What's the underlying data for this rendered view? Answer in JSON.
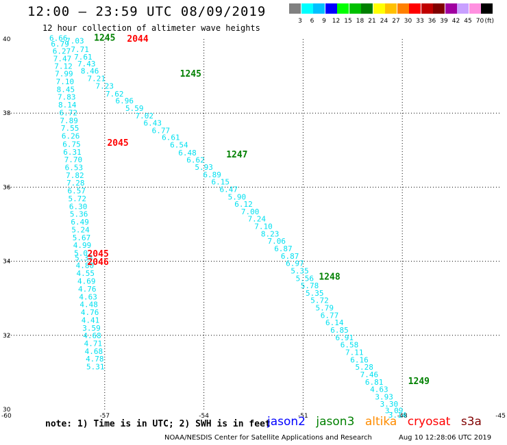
{
  "header": {
    "title": "12:00 – 23:59 UTC 08/09/2019",
    "subtitle": "12 hour collection of altimeter wave heights"
  },
  "colorbar": {
    "unit": "(ft)",
    "swatches": [
      {
        "label": "3",
        "color": "#808080"
      },
      {
        "label": "6",
        "color": "#00ffff"
      },
      {
        "label": "9",
        "color": "#00c0ff"
      },
      {
        "label": "12",
        "color": "#0000ff"
      },
      {
        "label": "15",
        "color": "#00ff00"
      },
      {
        "label": "18",
        "color": "#00c000"
      },
      {
        "label": "21",
        "color": "#008000"
      },
      {
        "label": "24",
        "color": "#ffff00"
      },
      {
        "label": "27",
        "color": "#ffc000"
      },
      {
        "label": "30",
        "color": "#ff8000"
      },
      {
        "label": "33",
        "color": "#ff0000"
      },
      {
        "label": "36",
        "color": "#c00000"
      },
      {
        "label": "39",
        "color": "#800000"
      },
      {
        "label": "42",
        "color": "#a000a0"
      },
      {
        "label": "45",
        "color": "#c8a0ff"
      },
      {
        "label": "70",
        "color": "#ff90e0"
      },
      {
        "label": "",
        "color": "#000000"
      }
    ]
  },
  "chart_data": {
    "type": "scatter",
    "title": "12:00 – 23:59 UTC 08/09/2019",
    "xlim": [
      -60,
      -45
    ],
    "ylim": [
      30,
      40
    ],
    "x_ticks": [
      "-60",
      "-57",
      "-54",
      "-51",
      "-48",
      "-45"
    ],
    "y_ticks": [
      "30",
      "32",
      "34",
      "36",
      "38",
      "40"
    ],
    "grid": true,
    "series": [
      {
        "name": "jason3",
        "color": "#00e0f0",
        "points": [
          {
            "lon": -58.4,
            "lat": 39.95,
            "label": "6.66"
          },
          {
            "lon": -58.35,
            "lat": 39.8,
            "label": "6.79"
          },
          {
            "lon": -58.3,
            "lat": 39.6,
            "label": "6.27"
          },
          {
            "lon": -58.28,
            "lat": 39.4,
            "label": "7.47"
          },
          {
            "lon": -58.25,
            "lat": 39.2,
            "label": "7.12"
          },
          {
            "lon": -58.23,
            "lat": 38.99,
            "label": "7.99"
          },
          {
            "lon": -58.2,
            "lat": 38.78,
            "label": "7.10"
          },
          {
            "lon": -58.18,
            "lat": 38.57,
            "label": "8.45"
          },
          {
            "lon": -58.15,
            "lat": 38.36,
            "label": "7.83"
          },
          {
            "lon": -58.13,
            "lat": 38.15,
            "label": "8.14"
          },
          {
            "lon": -58.1,
            "lat": 37.94,
            "label": "6.72"
          },
          {
            "lon": -58.08,
            "lat": 37.73,
            "label": "7.89"
          },
          {
            "lon": -58.05,
            "lat": 37.52,
            "label": "7.55"
          },
          {
            "lon": -58.03,
            "lat": 37.31,
            "label": "6.26"
          },
          {
            "lon": -58.0,
            "lat": 37.09,
            "label": "6.75"
          },
          {
            "lon": -57.98,
            "lat": 36.88,
            "label": "6.31"
          },
          {
            "lon": -57.95,
            "lat": 36.67,
            "label": "7.70"
          },
          {
            "lon": -57.93,
            "lat": 36.46,
            "label": "6.53"
          },
          {
            "lon": -57.9,
            "lat": 36.25,
            "label": "7.82"
          },
          {
            "lon": -57.88,
            "lat": 36.04,
            "label": "7.28"
          },
          {
            "lon": -57.85,
            "lat": 35.83,
            "label": "6.57"
          },
          {
            "lon": -57.83,
            "lat": 35.62,
            "label": "5.72"
          },
          {
            "lon": -57.8,
            "lat": 35.41,
            "label": "6.30"
          },
          {
            "lon": -57.78,
            "lat": 35.2,
            "label": "5.36"
          },
          {
            "lon": -57.75,
            "lat": 34.99,
            "label": "6.49"
          },
          {
            "lon": -57.73,
            "lat": 34.78,
            "label": "5.24"
          },
          {
            "lon": -57.7,
            "lat": 34.57,
            "label": "5.67"
          },
          {
            "lon": -57.68,
            "lat": 34.36,
            "label": "4.99"
          },
          {
            "lon": -57.65,
            "lat": 34.15,
            "label": "5.02"
          },
          {
            "lon": -57.63,
            "lat": 34.02,
            "label": "5.33"
          },
          {
            "lon": -57.6,
            "lat": 33.82,
            "label": "4.80"
          },
          {
            "lon": -57.58,
            "lat": 33.6,
            "label": "4.55"
          },
          {
            "lon": -57.55,
            "lat": 33.39,
            "label": "4.69"
          },
          {
            "lon": -57.53,
            "lat": 33.18,
            "label": "4.76"
          },
          {
            "lon": -57.5,
            "lat": 32.97,
            "label": "4.63"
          },
          {
            "lon": -57.48,
            "lat": 32.76,
            "label": "4.48"
          },
          {
            "lon": -57.45,
            "lat": 32.55,
            "label": "4.76"
          },
          {
            "lon": -57.43,
            "lat": 32.34,
            "label": "4.41"
          },
          {
            "lon": -57.4,
            "lat": 32.13,
            "label": "3.59"
          },
          {
            "lon": -57.38,
            "lat": 31.92,
            "label": "4.68"
          },
          {
            "lon": -57.35,
            "lat": 31.71,
            "label": "4.71"
          },
          {
            "lon": -57.33,
            "lat": 31.5,
            "label": "4.68"
          },
          {
            "lon": -57.3,
            "lat": 31.29,
            "label": "4.78"
          },
          {
            "lon": -57.28,
            "lat": 31.08,
            "label": "5.31"
          }
        ]
      },
      {
        "name": "jason3-descending",
        "color": "#00e0f0",
        "points": [
          {
            "lon": -57.9,
            "lat": 39.88,
            "label": "7.03"
          },
          {
            "lon": -57.75,
            "lat": 39.65,
            "label": "7.71"
          },
          {
            "lon": -57.65,
            "lat": 39.45,
            "label": "7.61"
          },
          {
            "lon": -57.55,
            "lat": 39.26,
            "label": "7.43"
          },
          {
            "lon": -57.45,
            "lat": 39.07,
            "label": "8.46"
          },
          {
            "lon": -57.25,
            "lat": 38.86,
            "label": "7.21"
          },
          {
            "lon": -57.0,
            "lat": 38.66,
            "label": "7.23"
          },
          {
            "lon": -56.7,
            "lat": 38.45,
            "label": "7.62"
          },
          {
            "lon": -56.4,
            "lat": 38.26,
            "label": "6.96"
          },
          {
            "lon": -56.1,
            "lat": 38.06,
            "label": "5.59"
          },
          {
            "lon": -55.8,
            "lat": 37.86,
            "label": "7.02"
          },
          {
            "lon": -55.55,
            "lat": 37.66,
            "label": "6.43"
          },
          {
            "lon": -55.3,
            "lat": 37.46,
            "label": "6.77"
          },
          {
            "lon": -55.0,
            "lat": 37.27,
            "label": "6.61"
          },
          {
            "lon": -54.75,
            "lat": 37.07,
            "label": "6.54"
          },
          {
            "lon": -54.5,
            "lat": 36.86,
            "label": "6.48"
          },
          {
            "lon": -54.25,
            "lat": 36.66,
            "label": "6.62"
          },
          {
            "lon": -54.0,
            "lat": 36.47,
            "label": "5.93"
          },
          {
            "lon": -53.75,
            "lat": 36.27,
            "label": "6.89"
          },
          {
            "lon": -53.5,
            "lat": 36.07,
            "label": "6.15"
          },
          {
            "lon": -53.25,
            "lat": 35.87,
            "label": "6.47"
          },
          {
            "lon": -53.0,
            "lat": 35.67,
            "label": "5.90"
          },
          {
            "lon": -52.8,
            "lat": 35.47,
            "label": "6.12"
          },
          {
            "lon": -52.6,
            "lat": 35.27,
            "label": "7.00"
          },
          {
            "lon": -52.4,
            "lat": 35.07,
            "label": "7.24"
          },
          {
            "lon": -52.2,
            "lat": 34.87,
            "label": "7.10"
          },
          {
            "lon": -52.0,
            "lat": 34.67,
            "label": "8.23"
          },
          {
            "lon": -51.8,
            "lat": 34.47,
            "label": "7.06"
          },
          {
            "lon": -51.6,
            "lat": 34.27,
            "label": "6.87"
          },
          {
            "lon": -51.4,
            "lat": 34.07,
            "label": "6.87"
          },
          {
            "lon": -51.25,
            "lat": 33.87,
            "label": "6.97"
          },
          {
            "lon": -51.1,
            "lat": 33.67,
            "label": "5.35"
          },
          {
            "lon": -50.95,
            "lat": 33.47,
            "label": "5.56"
          },
          {
            "lon": -50.8,
            "lat": 33.27,
            "label": "5.78"
          },
          {
            "lon": -50.65,
            "lat": 33.07,
            "label": "5.35"
          },
          {
            "lon": -50.5,
            "lat": 32.87,
            "label": "5.72"
          },
          {
            "lon": -50.35,
            "lat": 32.67,
            "label": "5.79"
          },
          {
            "lon": -50.2,
            "lat": 32.47,
            "label": "6.77"
          },
          {
            "lon": -50.05,
            "lat": 32.27,
            "label": "6.14"
          },
          {
            "lon": -49.9,
            "lat": 32.07,
            "label": "6.85"
          },
          {
            "lon": -49.75,
            "lat": 31.87,
            "label": "6.91"
          },
          {
            "lon": -49.6,
            "lat": 31.67,
            "label": "6.58"
          },
          {
            "lon": -49.45,
            "lat": 31.47,
            "label": "7.11"
          },
          {
            "lon": -49.3,
            "lat": 31.27,
            "label": "6.16"
          },
          {
            "lon": -49.15,
            "lat": 31.07,
            "label": "5.28"
          },
          {
            "lon": -49.0,
            "lat": 30.87,
            "label": "7.46"
          },
          {
            "lon": -48.85,
            "lat": 30.67,
            "label": "6.81"
          },
          {
            "lon": -48.7,
            "lat": 30.47,
            "label": "4.63"
          },
          {
            "lon": -48.55,
            "lat": 30.27,
            "label": "3.93"
          },
          {
            "lon": -48.4,
            "lat": 30.07,
            "label": "3.30"
          },
          {
            "lon": -48.25,
            "lat": 29.9,
            "label": "3.09"
          },
          {
            "lon": -48.15,
            "lat": 29.78,
            "label": "3.14"
          }
        ]
      }
    ],
    "time_labels": [
      {
        "lon": -57.0,
        "lat": 39.95,
        "label": "1245",
        "satellite": "jason3",
        "color": "#008000"
      },
      {
        "lon": -56.0,
        "lat": 39.93,
        "label": "2044",
        "satellite": "cryosat",
        "color": "#ff0000"
      },
      {
        "lon": -54.4,
        "lat": 38.98,
        "label": "1245",
        "satellite": "jason3",
        "color": "#008000"
      },
      {
        "lon": -56.6,
        "lat": 37.12,
        "label": "2045",
        "satellite": "cryosat",
        "color": "#ff0000"
      },
      {
        "lon": -53.0,
        "lat": 36.8,
        "label": "1247",
        "satellite": "jason3",
        "color": "#008000"
      },
      {
        "lon": -57.2,
        "lat": 34.12,
        "label": "2045",
        "satellite": "cryosat",
        "color": "#ff0000"
      },
      {
        "lon": -57.2,
        "lat": 33.9,
        "label": "2046",
        "satellite": "cryosat",
        "color": "#ff0000"
      },
      {
        "lon": -50.2,
        "lat": 33.5,
        "label": "1248",
        "satellite": "jason3",
        "color": "#008000"
      },
      {
        "lon": -47.5,
        "lat": 30.68,
        "label": "1249",
        "satellite": "jason3",
        "color": "#008000"
      }
    ]
  },
  "footer": {
    "note": "note: 1) Time is in UTC; 2) SWH is in feet",
    "legend": [
      {
        "name": "jason2",
        "color": "#0000ff"
      },
      {
        "name": "jason3",
        "color": "#008000"
      },
      {
        "name": "altika",
        "color": "#ff8c00"
      },
      {
        "name": "cryosat",
        "color": "#ff0000"
      },
      {
        "name": "s3a",
        "color": "#800000"
      }
    ],
    "credit": "NOAA/NESDIS Center for Satellite Applications and Research",
    "timestamp": "Aug 10 12:28:06 UTC 2019"
  }
}
